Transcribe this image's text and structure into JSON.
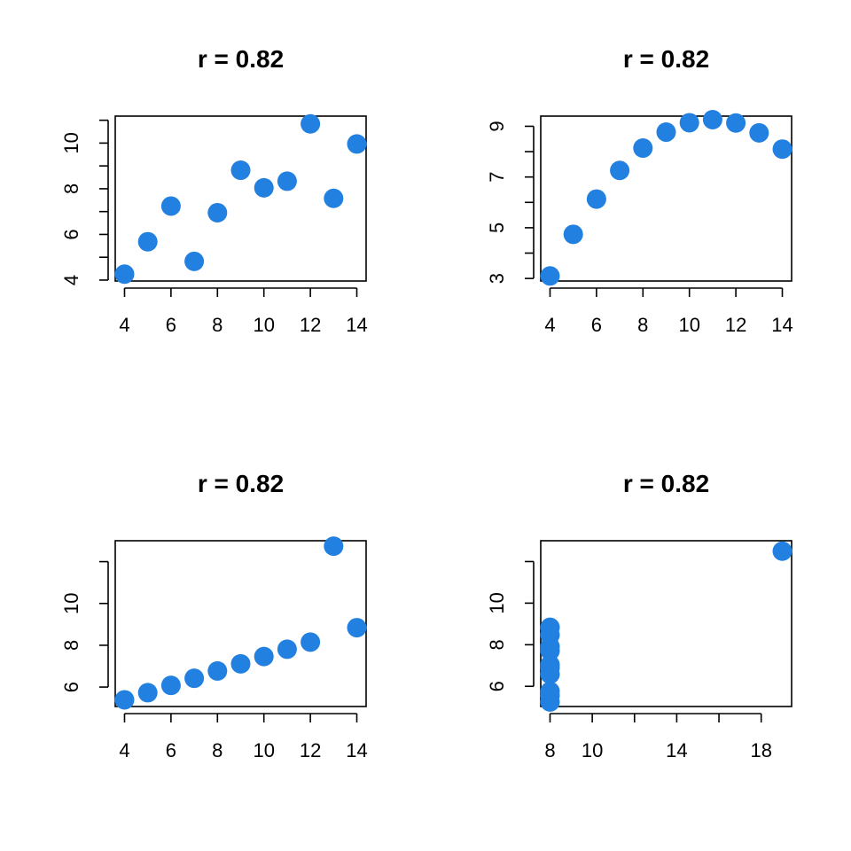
{
  "colors": {
    "point": "#2180E0"
  },
  "chart_data": [
    {
      "type": "scatter",
      "title": "r =  0.82",
      "xlabel": "",
      "ylabel": "",
      "xlim": [
        3.6,
        14.4
      ],
      "ylim": [
        3.96,
        11.18
      ],
      "xticks": [
        4,
        6,
        8,
        10,
        12,
        14
      ],
      "yticks": [
        4,
        5,
        6,
        7,
        8,
        9,
        10,
        11
      ],
      "ytick_labels": [
        "4",
        "",
        "6",
        "",
        "8",
        "",
        "10",
        ""
      ],
      "x": [
        4,
        5,
        6,
        7,
        8,
        9,
        10,
        11,
        12,
        13,
        14
      ],
      "y": [
        4.26,
        5.68,
        7.24,
        4.82,
        6.95,
        8.81,
        8.04,
        8.33,
        10.84,
        7.58,
        9.96
      ]
    },
    {
      "type": "scatter",
      "title": "r =  0.82",
      "xlabel": "",
      "ylabel": "",
      "xlim": [
        3.6,
        14.4
      ],
      "ylim": [
        2.9,
        9.4
      ],
      "xticks": [
        4,
        6,
        8,
        10,
        12,
        14
      ],
      "yticks": [
        3,
        4,
        5,
        6,
        7,
        8,
        9
      ],
      "ytick_labels": [
        "3",
        "",
        "5",
        "",
        "7",
        "",
        "9"
      ],
      "x": [
        4,
        5,
        6,
        7,
        8,
        9,
        10,
        11,
        12,
        13,
        14
      ],
      "y": [
        3.1,
        4.74,
        6.13,
        7.26,
        8.14,
        8.77,
        9.14,
        9.26,
        9.13,
        8.74,
        8.1
      ]
    },
    {
      "type": "scatter",
      "title": "r =  0.82",
      "xlabel": "",
      "ylabel": "",
      "xlim": [
        3.6,
        14.4
      ],
      "ylim": [
        5.07,
        13.0
      ],
      "xticks": [
        4,
        6,
        8,
        10,
        12,
        14
      ],
      "yticks": [
        6,
        8,
        10,
        12
      ],
      "ytick_labels": [
        "6",
        "8",
        "10",
        ""
      ],
      "x": [
        4,
        5,
        6,
        7,
        8,
        9,
        10,
        11,
        12,
        13,
        14
      ],
      "y": [
        5.39,
        5.73,
        6.08,
        6.42,
        6.77,
        7.11,
        7.46,
        7.81,
        8.15,
        12.74,
        8.84
      ]
    },
    {
      "type": "scatter",
      "title": "r =  0.82",
      "xlabel": "",
      "ylabel": "",
      "xlim": [
        7.56,
        19.44
      ],
      "ylim": [
        5.03,
        13.0
      ],
      "xticks": [
        8,
        10,
        12,
        14,
        16,
        18
      ],
      "xtick_labels": [
        "8",
        "10",
        "",
        "14",
        "",
        "18"
      ],
      "yticks": [
        6,
        8,
        10,
        12
      ],
      "ytick_labels": [
        "6",
        "8",
        "10",
        ""
      ],
      "x": [
        8,
        8,
        8,
        8,
        8,
        8,
        8,
        19,
        8,
        8,
        8
      ],
      "y": [
        6.58,
        5.76,
        7.71,
        8.84,
        8.47,
        7.04,
        5.25,
        12.5,
        5.56,
        7.91,
        6.89
      ]
    }
  ]
}
